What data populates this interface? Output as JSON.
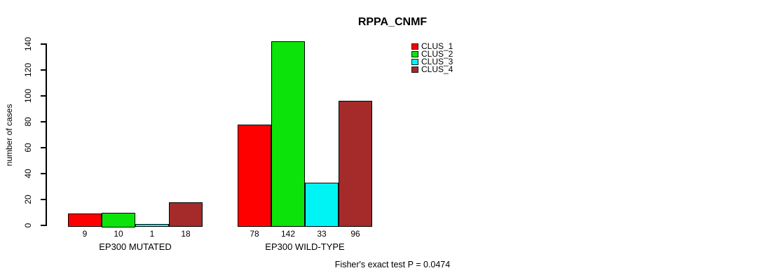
{
  "chart_data": {
    "type": "bar",
    "title": "RPPA_CNMF",
    "xlabel": "",
    "ylabel": "number of cases",
    "ylim": [
      0,
      140
    ],
    "yticks": [
      0,
      20,
      40,
      60,
      80,
      100,
      120,
      140
    ],
    "grid": false,
    "legend_position": "top-right",
    "categories": [
      "EP300 MUTATED",
      "EP300 WILD-TYPE"
    ],
    "series": [
      {
        "name": "CLUS_1",
        "color": "#ff0000",
        "values": [
          9,
          78
        ]
      },
      {
        "name": "CLUS_2",
        "color": "#0be30b",
        "values": [
          10,
          142
        ]
      },
      {
        "name": "CLUS_3",
        "color": "#00f4f4",
        "values": [
          1,
          33
        ]
      },
      {
        "name": "CLUS_4",
        "color": "#a52a2a",
        "values": [
          18,
          96
        ]
      }
    ],
    "annotation": "Fisher's exact test P = 0.0474"
  }
}
